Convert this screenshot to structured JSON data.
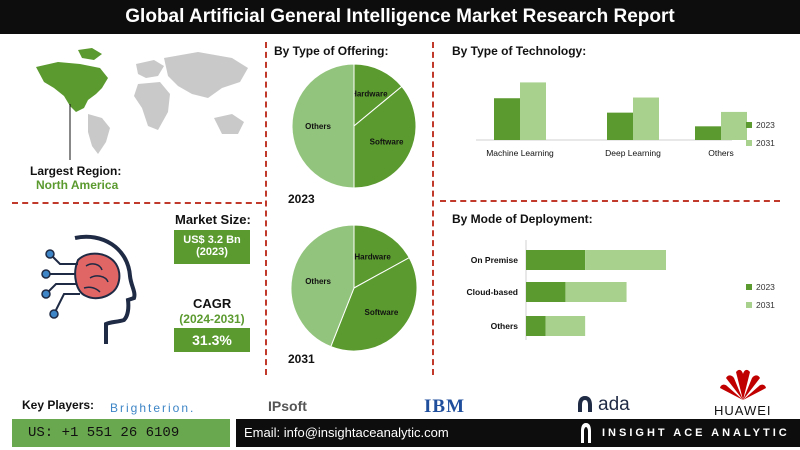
{
  "title": "Global Artificial General Intelligence Market Research Report",
  "region": {
    "label": "Largest Region:",
    "value": "North America"
  },
  "market_size": {
    "label": "Market Size:",
    "value_line1": "US$ 3.2 Bn",
    "value_line2": "(2023)"
  },
  "cagr": {
    "label": "CAGR",
    "period": "(2024-2031)",
    "value": "31.3%"
  },
  "offering": {
    "title": "By Type of Offering:"
  },
  "technology": {
    "title": "By  Type of Technology:"
  },
  "deployment": {
    "title": "By Mode of Deployment:"
  },
  "key_players": {
    "label": "Key Players:",
    "brighterion": "Brighterion.",
    "ipsoft": "IPsoft",
    "ibm": "IBM",
    "ada": "ada",
    "huawei": "HUAWEI"
  },
  "footer": {
    "phone": "US: +1 551 26 6109",
    "email": "Email: info@insightaceanalytic.com",
    "brand": "INSIGHT ACE ANALYTIC"
  },
  "colors": {
    "dark_green": "#5b9a2f",
    "mid_green": "#6aa84f",
    "light_green": "#a9d18e",
    "pie_light": "#93c47d",
    "accent_red": "#c0392b"
  },
  "chart_data": [
    {
      "type": "pie",
      "title": "2023",
      "slices": [
        {
          "label": "Hardware",
          "value": 14
        },
        {
          "label": "Software",
          "value": 36
        },
        {
          "label": "Others",
          "value": 50
        }
      ]
    },
    {
      "type": "pie",
      "title": "2031",
      "slices": [
        {
          "label": "Hardware",
          "value": 17
        },
        {
          "label": "Software",
          "value": 39
        },
        {
          "label": "Others",
          "value": 44
        }
      ]
    },
    {
      "type": "bar",
      "categories": [
        "Machine Learning",
        "Deep Learning",
        "Others"
      ],
      "series": [
        {
          "name": "2023",
          "values": [
            58,
            38,
            19
          ]
        },
        {
          "name": "2031",
          "values": [
            80,
            59,
            39
          ]
        }
      ],
      "ylim": [
        0,
        100
      ],
      "legend": "right"
    },
    {
      "type": "bar",
      "orientation": "horizontal",
      "stacked": true,
      "categories": [
        "On Premise",
        "Cloud-based",
        "Others"
      ],
      "series": [
        {
          "name": "2023",
          "values": [
            30,
            20,
            10
          ]
        },
        {
          "name": "2031",
          "values": [
            41,
            31,
            20
          ]
        }
      ],
      "xlim": [
        0,
        80
      ],
      "legend": "right"
    }
  ]
}
